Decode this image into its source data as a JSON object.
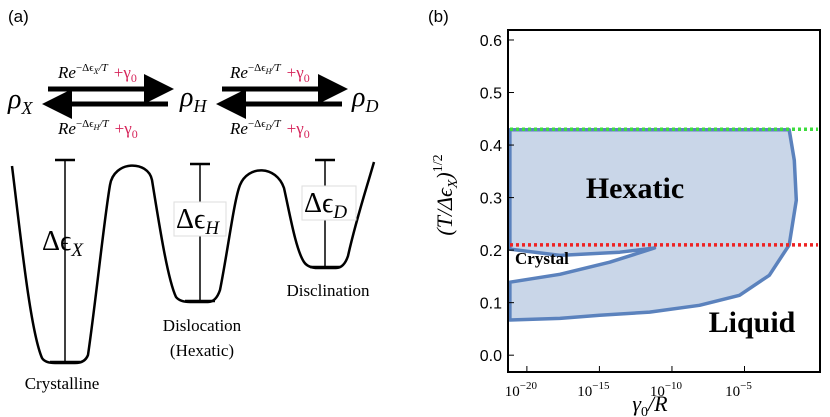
{
  "panel_a": {
    "label": "(a)",
    "states": [
      {
        "symbol": "ρ",
        "sub": "X"
      },
      {
        "symbol": "ρ",
        "sub": "H"
      },
      {
        "symbol": "ρ",
        "sub": "D"
      }
    ],
    "rates": [
      {
        "base": "Re",
        "exp": "−Δϵ",
        "exp_sub": "X",
        "exp_tail": "/T",
        "term": "+γ",
        "term_sub": "0"
      },
      {
        "base": "Re",
        "exp": "−Δϵ",
        "exp_sub": "H",
        "exp_tail": "/T",
        "term": "+γ",
        "term_sub": "0"
      },
      {
        "base": "Re",
        "exp": "−Δϵ",
        "exp_sub": "H",
        "exp_tail": "/T",
        "term": "+γ",
        "term_sub": "0"
      },
      {
        "base": "Re",
        "exp": "−Δϵ",
        "exp_sub": "D",
        "exp_tail": "/T",
        "term": "+γ",
        "term_sub": "0"
      }
    ],
    "barriers": [
      {
        "symbol": "Δϵ",
        "sub": "X"
      },
      {
        "symbol": "Δϵ",
        "sub": "H"
      },
      {
        "symbol": "Δϵ",
        "sub": "D"
      }
    ],
    "wells": [
      [
        "Crystalline"
      ],
      [
        "Dislocation",
        "(Hexatic)"
      ],
      [
        "Disclination"
      ]
    ]
  },
  "chart_data": {
    "type": "region",
    "panel_label": "(b)",
    "x_label": {
      "symbol": "γ",
      "sub": "0",
      "tail": "/R"
    },
    "y_label": {
      "head": "(T/Δϵ",
      "sub": "X",
      "tail": ")",
      "sup": "1/2"
    },
    "xscale": "log",
    "xlim": [
      5e-22,
      1.6
    ],
    "ylim": [
      -0.032,
      0.619
    ],
    "xticks": [
      {
        "value": 1e-20,
        "label": "10",
        "exponent": "−20"
      },
      {
        "value": 1e-15,
        "label": "10",
        "exponent": "−15"
      },
      {
        "value": 1e-10,
        "label": "10",
        "exponent": "−10"
      },
      {
        "value": 1e-05,
        "label": "10",
        "exponent": "−5"
      }
    ],
    "yticks": [
      {
        "value": 0,
        "label": "0.0"
      },
      0.1,
      0.2,
      0.3,
      0.4,
      0.5,
      0.6
    ],
    "region": {
      "fill": "#c9d6e8",
      "edge": "#5b82bd",
      "x": [
        6.8e-22,
        0.012,
        0.027,
        0.037,
        0.012,
        0.00051,
        4.5e-06,
        7.9e-09,
        2.9e-12,
        1.05e-15,
        1.9e-18,
        6.8e-22,
        6.8e-22,
        1.9e-18,
        5.1e-15,
        6.3e-12,
        2.5e-14,
        1.9e-18,
        6.8e-22
      ],
      "y": [
        0.429,
        0.429,
        0.371,
        0.295,
        0.21,
        0.152,
        0.114,
        0.095,
        0.082,
        0.076,
        0.07,
        0.067,
        0.139,
        0.154,
        0.177,
        0.204,
        0.196,
        0.19,
        0.202
      ]
    },
    "hlines": [
      {
        "y": 0.43,
        "color": "#3ddc3d"
      },
      {
        "y": 0.21,
        "color": "#ee2222"
      }
    ],
    "annotations": [
      "Hexatic",
      "Crystal",
      "Liquid"
    ]
  }
}
